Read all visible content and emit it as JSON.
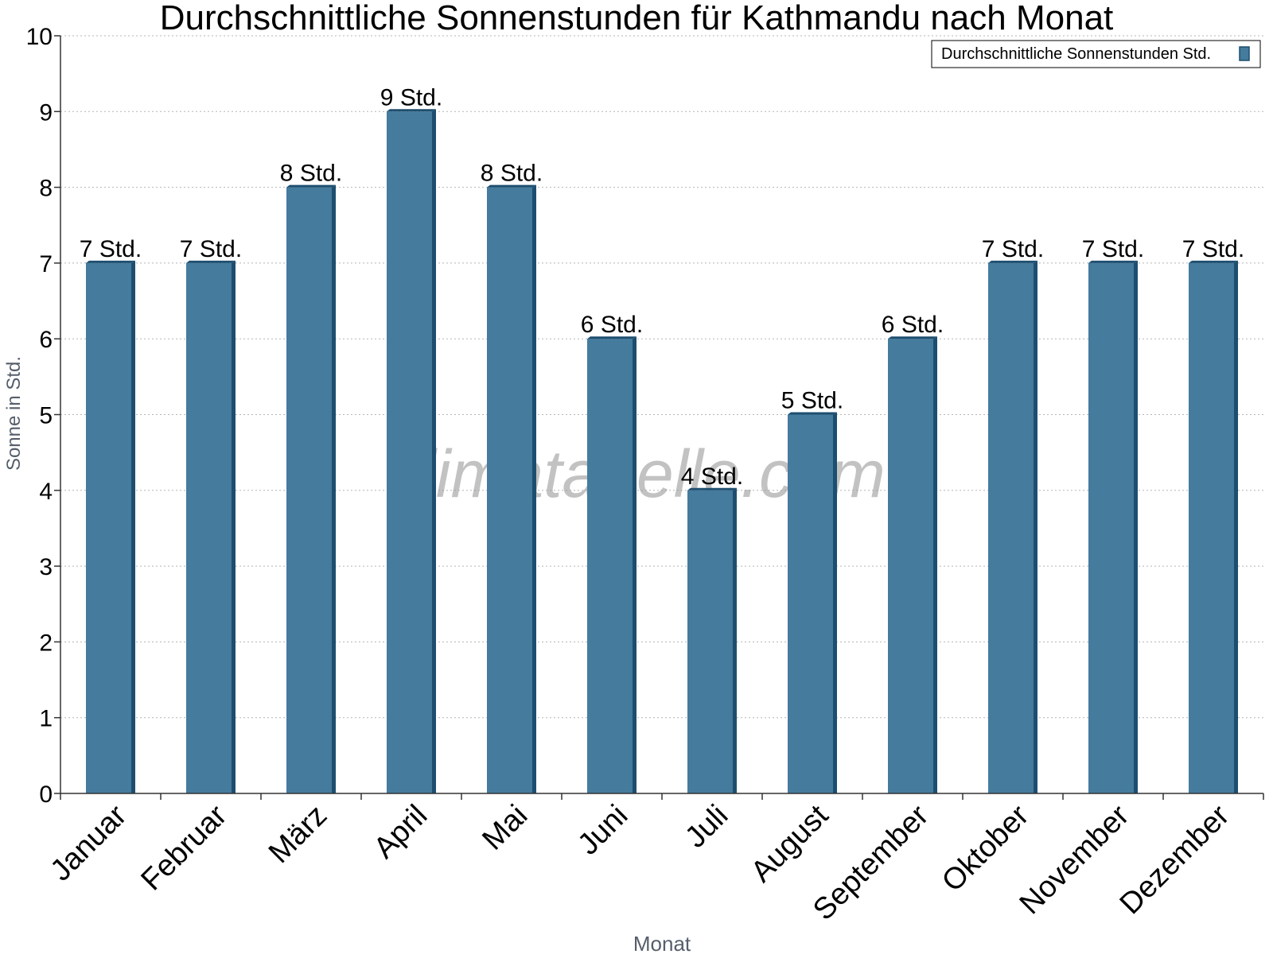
{
  "chart_data": {
    "type": "bar",
    "title": "Durchschnittliche Sonnenstunden für Kathmandu nach Monat",
    "xlabel": "Monat",
    "ylabel": "Sonne in Std.",
    "ylim": [
      0,
      10
    ],
    "yticks": [
      0,
      1,
      2,
      3,
      4,
      5,
      6,
      7,
      8,
      9,
      10
    ],
    "grid": true,
    "legend_position": "top-right",
    "categories": [
      "Januar",
      "Februar",
      "März",
      "April",
      "Mai",
      "Juni",
      "Juli",
      "August",
      "September",
      "Oktober",
      "November",
      "Dezember"
    ],
    "series": [
      {
        "name": "Durchschnittliche Sonnenstunden Std.",
        "values": [
          7,
          7,
          8,
          9,
          8,
          6,
          4,
          5,
          6,
          7,
          7,
          7
        ],
        "labels": [
          "7 Std.",
          "7 Std.",
          "8 Std.",
          "9 Std.",
          "8 Std.",
          "6 Std.",
          "4 Std.",
          "5 Std.",
          "6 Std.",
          "7 Std.",
          "7 Std.",
          "7 Std."
        ],
        "color": "#457b9d",
        "edge_color": "#1d4e6f"
      }
    ]
  },
  "watermark": "klimatabelle.com"
}
